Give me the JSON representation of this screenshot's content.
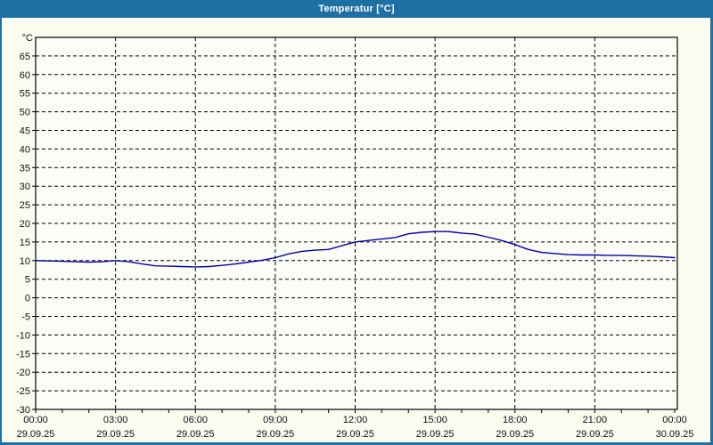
{
  "window": {
    "title": "Temperatur [°C]"
  },
  "colors": {
    "titlebar": "#1d6fa4",
    "frame": "#1d6fa4",
    "content_bg": "#fbfbef",
    "plot_bg": "#fdfdf8",
    "line": "#0000aa",
    "grid": "#000000",
    "axis": "#000000",
    "text": "#101018"
  },
  "chart_data": {
    "type": "line",
    "title": "Temperatur [°C]",
    "ylabel": "°C",
    "unit_label": "°C",
    "ylim": [
      -30,
      70
    ],
    "ytick_min": -30,
    "ytick_max": 65,
    "ytick_step": 5,
    "xlim_hours": [
      0,
      24
    ],
    "x_major_step_hours": 3,
    "x_minor_step_hours": 1,
    "grid": "dashed",
    "legend_position": "none",
    "x_tick_labels": [
      {
        "time": "00:00",
        "date": "29.09.25"
      },
      {
        "time": "03:00",
        "date": "29.09.25"
      },
      {
        "time": "06:00",
        "date": "29.09.25"
      },
      {
        "time": "09:00",
        "date": "29.09.25"
      },
      {
        "time": "12:00",
        "date": "29.09.25"
      },
      {
        "time": "15:00",
        "date": "29.09.25"
      },
      {
        "time": "18:00",
        "date": "29.09.25"
      },
      {
        "time": "21:00",
        "date": "29.09.25"
      },
      {
        "time": "00:00",
        "date": "30.09.25"
      }
    ],
    "series": [
      {
        "name": "Temperatur",
        "x_hours": [
          0,
          0.5,
          1,
          1.5,
          2,
          2.5,
          3,
          3.5,
          4,
          4.5,
          5,
          5.5,
          6,
          6.5,
          7,
          7.5,
          8,
          8.5,
          9,
          9.5,
          10,
          10.5,
          11,
          11.5,
          12,
          12.5,
          13,
          13.5,
          14,
          14.5,
          15,
          15.5,
          16,
          16.5,
          17,
          17.5,
          18,
          18.5,
          19,
          19.5,
          20,
          20.5,
          21,
          21.5,
          22,
          22.5,
          23,
          23.5,
          24
        ],
        "values": [
          10.0,
          9.9,
          9.8,
          9.7,
          9.6,
          9.7,
          10.0,
          9.7,
          9.1,
          8.6,
          8.5,
          8.4,
          8.3,
          8.4,
          8.7,
          9.1,
          9.6,
          10.1,
          10.8,
          11.8,
          12.5,
          12.8,
          13.0,
          14.0,
          15.0,
          15.4,
          15.8,
          16.2,
          17.2,
          17.6,
          17.8,
          17.8,
          17.4,
          17.1,
          16.3,
          15.4,
          14.3,
          13.0,
          12.2,
          11.9,
          11.6,
          11.5,
          11.5,
          11.4,
          11.4,
          11.3,
          11.2,
          11.0,
          10.8
        ]
      }
    ]
  }
}
